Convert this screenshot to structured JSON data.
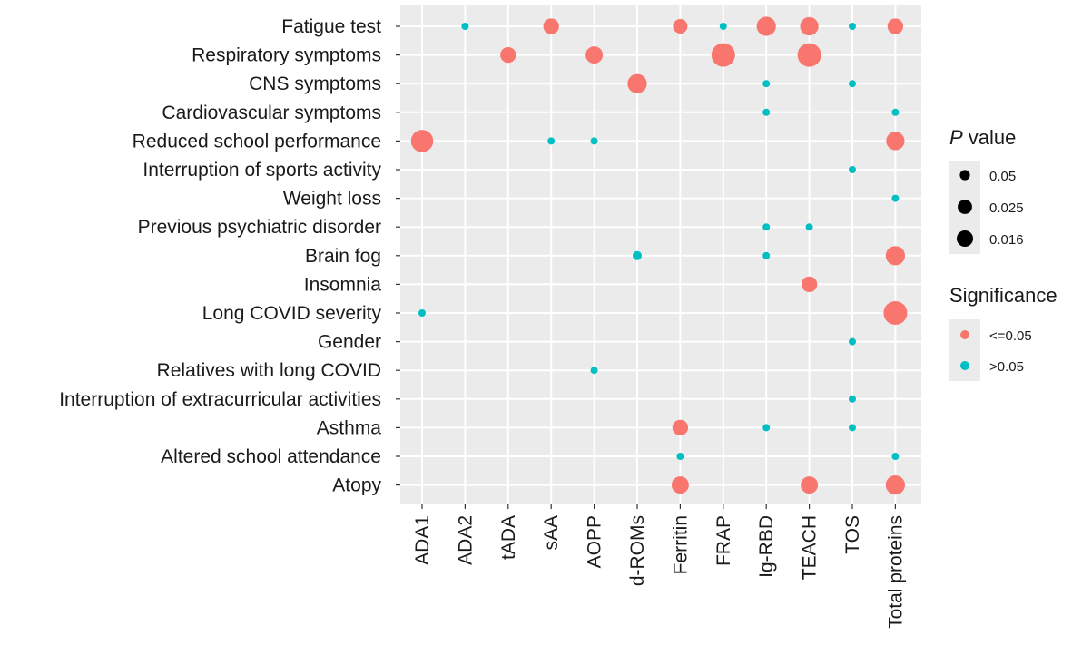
{
  "chart_data": {
    "type": "scatter",
    "title": "",
    "xlabel": "",
    "ylabel": "",
    "grid": true,
    "x_categories": [
      "ADA1",
      "ADA2",
      "tADA",
      "sAA",
      "AOPP",
      "d-ROMs",
      "Ferritin",
      "FRAP",
      "Ig-RBD",
      "TEACH",
      "TOS",
      "Total proteins"
    ],
    "y_categories": [
      "Fatigue test",
      "Respiratory symptoms",
      "CNS symptoms",
      "Cardiovascular symptoms",
      "Reduced school performance",
      "Interruption of sports activity",
      "Weight loss",
      "Previous psychiatric disorder",
      "Brain fog",
      "Insomnia",
      "Long COVID severity",
      "Gender",
      "Relatives with long COVID",
      "Interruption of extracurricular activities",
      "Asthma",
      "Altered school attendance",
      "Atopy"
    ],
    "points": [
      {
        "x": "ADA2",
        "y": "Fatigue test",
        "p": 0.2,
        "sig": ">0.05"
      },
      {
        "x": "sAA",
        "y": "Fatigue test",
        "p": 0.03,
        "sig": "<=0.05"
      },
      {
        "x": "Ferritin",
        "y": "Fatigue test",
        "p": 0.035,
        "sig": "<=0.05"
      },
      {
        "x": "FRAP",
        "y": "Fatigue test",
        "p": 0.2,
        "sig": ">0.05"
      },
      {
        "x": "Ig-RBD",
        "y": "Fatigue test",
        "p": 0.02,
        "sig": "<=0.05"
      },
      {
        "x": "TEACH",
        "y": "Fatigue test",
        "p": 0.022,
        "sig": "<=0.05"
      },
      {
        "x": "TOS",
        "y": "Fatigue test",
        "p": 0.3,
        "sig": ">0.05"
      },
      {
        "x": "Total proteins",
        "y": "Fatigue test",
        "p": 0.03,
        "sig": "<=0.05"
      },
      {
        "x": "tADA",
        "y": "Respiratory symptoms",
        "p": 0.03,
        "sig": "<=0.05"
      },
      {
        "x": "AOPP",
        "y": "Respiratory symptoms",
        "p": 0.025,
        "sig": "<=0.05"
      },
      {
        "x": "FRAP",
        "y": "Respiratory symptoms",
        "p": 0.01,
        "sig": "<=0.05"
      },
      {
        "x": "TEACH",
        "y": "Respiratory symptoms",
        "p": 0.012,
        "sig": "<=0.05"
      },
      {
        "x": "d-ROMs",
        "y": "CNS symptoms",
        "p": 0.02,
        "sig": "<=0.05"
      },
      {
        "x": "Ig-RBD",
        "y": "CNS symptoms",
        "p": 0.5,
        "sig": ">0.05"
      },
      {
        "x": "TOS",
        "y": "CNS symptoms",
        "p": 0.4,
        "sig": ">0.05"
      },
      {
        "x": "Ig-RBD",
        "y": "Cardiovascular symptoms",
        "p": 0.5,
        "sig": ">0.05"
      },
      {
        "x": "Total proteins",
        "y": "Cardiovascular symptoms",
        "p": 0.5,
        "sig": ">0.05"
      },
      {
        "x": "ADA1",
        "y": "Reduced school performance",
        "p": 0.015,
        "sig": "<=0.05"
      },
      {
        "x": "sAA",
        "y": "Reduced school performance",
        "p": 0.2,
        "sig": ">0.05"
      },
      {
        "x": "AOPP",
        "y": "Reduced school performance",
        "p": 0.3,
        "sig": ">0.05"
      },
      {
        "x": "Total proteins",
        "y": "Reduced school performance",
        "p": 0.022,
        "sig": "<=0.05"
      },
      {
        "x": "TOS",
        "y": "Interruption of sports activity",
        "p": 0.6,
        "sig": ">0.05"
      },
      {
        "x": "Total proteins",
        "y": "Weight loss",
        "p": 0.2,
        "sig": ">0.05"
      },
      {
        "x": "Ig-RBD",
        "y": "Previous psychiatric disorder",
        "p": 0.9,
        "sig": ">0.05"
      },
      {
        "x": "TEACH",
        "y": "Previous psychiatric disorder",
        "p": 0.3,
        "sig": ">0.05"
      },
      {
        "x": "d-ROMs",
        "y": "Brain fog",
        "p": 0.09,
        "sig": ">0.05"
      },
      {
        "x": "Ig-RBD",
        "y": "Brain fog",
        "p": 0.5,
        "sig": ">0.05"
      },
      {
        "x": "Total proteins",
        "y": "Brain fog",
        "p": 0.02,
        "sig": "<=0.05"
      },
      {
        "x": "TEACH",
        "y": "Insomnia",
        "p": 0.03,
        "sig": "<=0.05"
      },
      {
        "x": "ADA1",
        "y": "Long COVID severity",
        "p": 0.3,
        "sig": ">0.05"
      },
      {
        "x": "Total proteins",
        "y": "Long COVID severity",
        "p": 0.005,
        "sig": "<=0.05"
      },
      {
        "x": "TOS",
        "y": "Gender",
        "p": 0.5,
        "sig": ">0.05"
      },
      {
        "x": "AOPP",
        "y": "Relatives with long COVID",
        "p": 0.5,
        "sig": ">0.05"
      },
      {
        "x": "TOS",
        "y": "Interruption of extracurricular activities",
        "p": 0.6,
        "sig": ">0.05"
      },
      {
        "x": "Ferritin",
        "y": "Asthma",
        "p": 0.03,
        "sig": "<=0.05"
      },
      {
        "x": "Ig-RBD",
        "y": "Asthma",
        "p": 0.5,
        "sig": ">0.05"
      },
      {
        "x": "TOS",
        "y": "Asthma",
        "p": 0.3,
        "sig": ">0.05"
      },
      {
        "x": "Ferritin",
        "y": "Altered school attendance",
        "p": 0.4,
        "sig": ">0.05"
      },
      {
        "x": "Total proteins",
        "y": "Altered school attendance",
        "p": 0.2,
        "sig": ">0.05"
      },
      {
        "x": "Ferritin",
        "y": "Atopy",
        "p": 0.025,
        "sig": "<=0.05"
      },
      {
        "x": "TEACH",
        "y": "Atopy",
        "p": 0.025,
        "sig": "<=0.05"
      },
      {
        "x": "Total proteins",
        "y": "Atopy",
        "p": 0.02,
        "sig": "<=0.05"
      }
    ],
    "legend_size": {
      "title_italic": "P",
      "title_rest": " value",
      "entries": [
        {
          "label": "0.05",
          "p": 0.05
        },
        {
          "label": "0.025",
          "p": 0.025
        },
        {
          "label": "0.016",
          "p": 0.016
        }
      ]
    },
    "legend_color": {
      "title": "Significance",
      "entries": [
        {
          "label": "<=0.05",
          "color": "#F8766D"
        },
        {
          "label": ">0.05",
          "color": "#00BFC4"
        }
      ]
    },
    "legend_position": "right"
  }
}
